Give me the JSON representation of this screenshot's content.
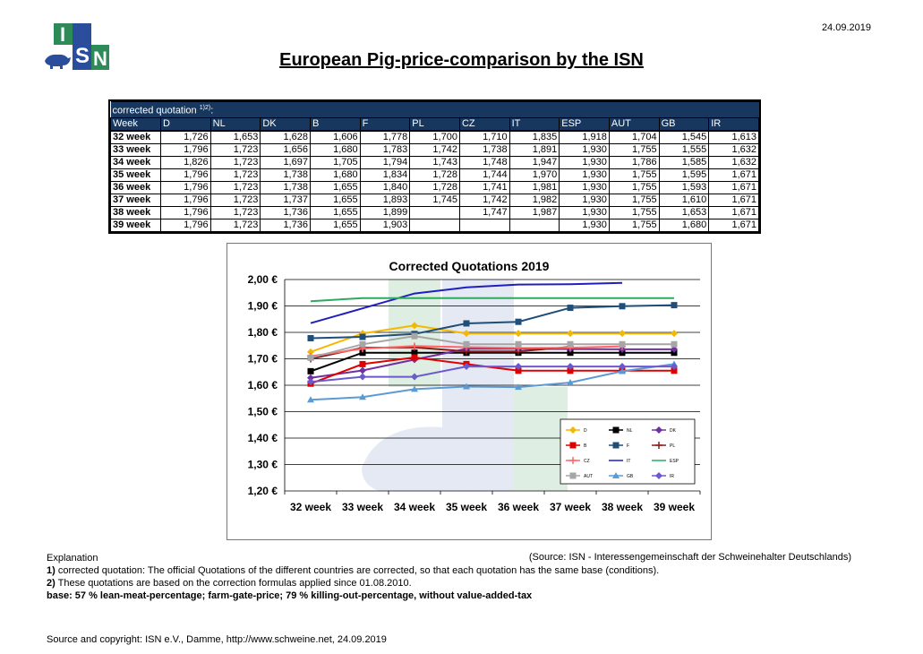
{
  "date": "24.09.2019",
  "title": "European Pig-price-comparison by the ISN",
  "logo_text": [
    "I",
    "S",
    "N"
  ],
  "table": {
    "caption": "corrected quotation",
    "caption_sup": "1)2)",
    "caption_suffix": ":",
    "headers": [
      "Week",
      "D",
      "NL",
      "DK",
      "B",
      "F",
      "PL",
      "CZ",
      "IT",
      "ESP",
      "AUT",
      "GB",
      "IR"
    ],
    "rows": [
      [
        "32 week",
        "1,726",
        "1,653",
        "1,628",
        "1,606",
        "1,778",
        "1,700",
        "1,710",
        "1,835",
        "1,918",
        "1,704",
        "1,545",
        "1,613"
      ],
      [
        "33 week",
        "1,796",
        "1,723",
        "1,656",
        "1,680",
        "1,783",
        "1,742",
        "1,738",
        "1,891",
        "1,930",
        "1,755",
        "1,555",
        "1,632"
      ],
      [
        "34 week",
        "1,826",
        "1,723",
        "1,697",
        "1,705",
        "1,794",
        "1,743",
        "1,748",
        "1,947",
        "1,930",
        "1,786",
        "1,585",
        "1,632"
      ],
      [
        "35 week",
        "1,796",
        "1,723",
        "1,738",
        "1,680",
        "1,834",
        "1,728",
        "1,744",
        "1,970",
        "1,930",
        "1,755",
        "1,595",
        "1,671"
      ],
      [
        "36 week",
        "1,796",
        "1,723",
        "1,738",
        "1,655",
        "1,840",
        "1,728",
        "1,741",
        "1,981",
        "1,930",
        "1,755",
        "1,593",
        "1,671"
      ],
      [
        "37 week",
        "1,796",
        "1,723",
        "1,737",
        "1,655",
        "1,893",
        "1,745",
        "1,742",
        "1,982",
        "1,930",
        "1,755",
        "1,610",
        "1,671"
      ],
      [
        "38 week",
        "1,796",
        "1,723",
        "1,736",
        "1,655",
        "1,899",
        "",
        "1,747",
        "1,987",
        "1,930",
        "1,755",
        "1,653",
        "1,671"
      ],
      [
        "39 week",
        "1,796",
        "1,723",
        "1,736",
        "1,655",
        "1,903",
        "",
        "",
        "",
        "1,930",
        "1,755",
        "1,680",
        "1,671"
      ]
    ]
  },
  "chart_data": {
    "type": "line",
    "title": "Corrected Quotations 2019",
    "categories": [
      "32 week",
      "33 week",
      "34 week",
      "35 week",
      "36 week",
      "37 week",
      "38 week",
      "39 week"
    ],
    "ylim": [
      1.2,
      2.0
    ],
    "yticks": [
      "2,00 €",
      "1,90 €",
      "1,80 €",
      "1,70 €",
      "1,60 €",
      "1,50 €",
      "1,40 €",
      "1,30 €",
      "1,20 €"
    ],
    "ytick_values": [
      2.0,
      1.9,
      1.8,
      1.7,
      1.6,
      1.5,
      1.4,
      1.3,
      1.2
    ],
    "grid": true,
    "legend_position": "bottom-right inside plot",
    "series": [
      {
        "name": "D",
        "color": "#f5b800",
        "marker": "diamond",
        "values": [
          1.726,
          1.796,
          1.826,
          1.796,
          1.796,
          1.796,
          1.796,
          1.796
        ]
      },
      {
        "name": "NL",
        "color": "#000000",
        "marker": "square",
        "values": [
          1.653,
          1.723,
          1.723,
          1.723,
          1.723,
          1.723,
          1.723,
          1.723
        ]
      },
      {
        "name": "DK",
        "color": "#7030a0",
        "marker": "diamond",
        "values": [
          1.628,
          1.656,
          1.697,
          1.738,
          1.738,
          1.737,
          1.736,
          1.736
        ]
      },
      {
        "name": "B",
        "color": "#e00000",
        "marker": "square",
        "values": [
          1.606,
          1.68,
          1.705,
          1.68,
          1.655,
          1.655,
          1.655,
          1.655
        ]
      },
      {
        "name": "F",
        "color": "#1f4e79",
        "marker": "square",
        "values": [
          1.778,
          1.783,
          1.794,
          1.834,
          1.84,
          1.893,
          1.899,
          1.903
        ]
      },
      {
        "name": "PL",
        "color": "#8b1a1a",
        "marker": "plus",
        "values": [
          1.7,
          1.742,
          1.743,
          1.728,
          1.728,
          1.745,
          null,
          null
        ]
      },
      {
        "name": "CZ",
        "color": "#ff6666",
        "marker": "plus",
        "values": [
          1.71,
          1.738,
          1.748,
          1.744,
          1.741,
          1.742,
          1.747,
          null
        ]
      },
      {
        "name": "IT",
        "color": "#1f1fbf",
        "marker": "none",
        "values": [
          1.835,
          1.891,
          1.947,
          1.97,
          1.981,
          1.982,
          1.987,
          null
        ]
      },
      {
        "name": "ESP",
        "color": "#2eaa5e",
        "marker": "none",
        "values": [
          1.918,
          1.93,
          1.93,
          1.93,
          1.93,
          1.93,
          1.93,
          1.93
        ]
      },
      {
        "name": "AUT",
        "color": "#a6a6a6",
        "marker": "square",
        "values": [
          1.704,
          1.755,
          1.786,
          1.755,
          1.755,
          1.755,
          1.755,
          1.755
        ]
      },
      {
        "name": "GB",
        "color": "#5b9bd5",
        "marker": "triangle",
        "values": [
          1.545,
          1.555,
          1.585,
          1.595,
          1.593,
          1.61,
          1.653,
          1.68
        ]
      },
      {
        "name": "IR",
        "color": "#6a5acd",
        "marker": "diamond",
        "values": [
          1.613,
          1.632,
          1.632,
          1.671,
          1.671,
          1.671,
          1.671,
          1.671
        ]
      }
    ]
  },
  "explanation": {
    "heading": "Explanation",
    "source": "(Source: ISN - Interessengemeinschaft der Schweinehalter Deutschlands)",
    "note1_num": "1)",
    "note1": " corrected quotation: The official Quotations of the different countries are corrected, so that each quotation has the same base (conditions).",
    "note2_num": "2)",
    "note2": " These quotations are based on the correction formulas applied since 01.08.2010.",
    "base": "base: 57 % lean-meat-percentage; farm-gate-price; 79 % killing-out-percentage, without value-added-tax"
  },
  "copyright": "Source and copyright: ISN e.V., Damme, http://www.schweine.net, 24.09.2019"
}
